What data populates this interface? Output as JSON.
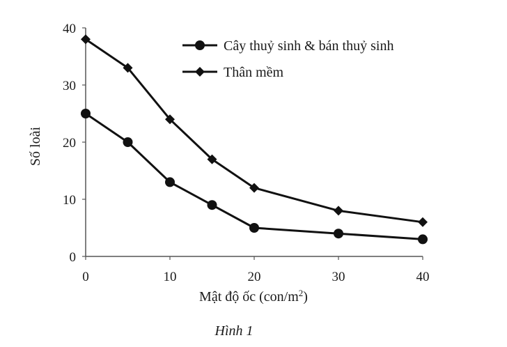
{
  "chart_data": {
    "type": "line",
    "title": "",
    "xlabel": "Mật độ ốc (con/m",
    "xlabel_sup": "2",
    "xlabel_suffix": ")",
    "ylabel": "Số loài",
    "x": [
      0,
      5,
      10,
      15,
      20,
      30,
      40
    ],
    "xticks": [
      0,
      10,
      20,
      30,
      40
    ],
    "yticks": [
      0,
      10,
      20,
      30,
      40
    ],
    "xlim": [
      0,
      40
    ],
    "ylim": [
      0,
      40
    ],
    "grid": false,
    "legend_position": "top-right",
    "series": [
      {
        "name": "Cây thuỷ sinh & bán thuỷ sinh",
        "marker": "circle",
        "values": [
          25,
          20,
          13,
          9,
          5,
          4,
          3
        ]
      },
      {
        "name": "Thân mềm",
        "marker": "diamond",
        "values": [
          38,
          33,
          24,
          17,
          12,
          8,
          6
        ]
      }
    ],
    "color": "#111111"
  },
  "caption": "Hình 1"
}
